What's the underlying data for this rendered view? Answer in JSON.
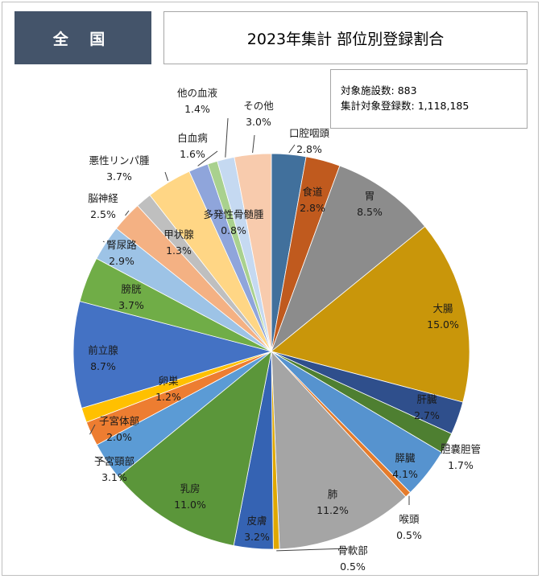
{
  "header": {
    "badge": "全 国",
    "title": "2023年集計 部位別登録割合"
  },
  "info": {
    "facilities_label": "対象施設数:",
    "facilities_value": "883",
    "registrations_label": "集計対象登録数:",
    "registrations_value": "1,118,185"
  },
  "chart_data": {
    "type": "pie",
    "title": "2023年集計 部位別登録割合",
    "slices": [
      {
        "label": "口腔咽頭",
        "value": 2.8,
        "text": "2.8%",
        "color": "#41709c"
      },
      {
        "label": "食道",
        "value": 2.8,
        "text": "2.8%",
        "color": "#c05a1e"
      },
      {
        "label": "胃",
        "value": 8.5,
        "text": "8.5%",
        "color": "#8c8c8c"
      },
      {
        "label": "大腸",
        "value": 15.0,
        "text": "15.0%",
        "color": "#c9960a"
      },
      {
        "label": "肝臓",
        "value": 2.7,
        "text": "2.7%",
        "color": "#2f4f8c"
      },
      {
        "label": "胆嚢胆管",
        "value": 1.7,
        "text": "1.7%",
        "color": "#4e7f31"
      },
      {
        "label": "膵臓",
        "value": 4.1,
        "text": "4.1%",
        "color": "#5693cf"
      },
      {
        "label": "喉頭",
        "value": 0.5,
        "text": "0.5%",
        "color": "#e57c2c"
      },
      {
        "label": "肺",
        "value": 11.2,
        "text": "11.2%",
        "color": "#a5a5a5"
      },
      {
        "label": "骨軟部",
        "value": 0.5,
        "text": "0.5%",
        "color": "#e0a800"
      },
      {
        "label": "皮膚",
        "value": 3.2,
        "text": "3.2%",
        "color": "#3563b3"
      },
      {
        "label": "乳房",
        "value": 11.0,
        "text": "11.0%",
        "color": "#5b963a"
      },
      {
        "label": "子宮頸部",
        "value": 3.1,
        "text": "3.1%",
        "color": "#5b9bd5"
      },
      {
        "label": "子宮体部",
        "value": 2.0,
        "text": "2.0%",
        "color": "#ed7d31"
      },
      {
        "label": "卵巣",
        "value": 1.2,
        "text": "1.2%",
        "color": "#ffc000"
      },
      {
        "label": "前立腺",
        "value": 8.7,
        "text": "8.7%",
        "color": "#4472c4"
      },
      {
        "label": "膀胱",
        "value": 3.7,
        "text": "3.7%",
        "color": "#70ad47"
      },
      {
        "label": "腎尿路",
        "value": 2.9,
        "text": "2.9%",
        "color": "#9dc3e6"
      },
      {
        "label": "脳神経",
        "value": 2.5,
        "text": "2.5%",
        "color": "#f4b183"
      },
      {
        "label": "甲状腺",
        "value": 1.3,
        "text": "1.3%",
        "color": "#bfbfbf"
      },
      {
        "label": "悪性リンパ腫",
        "value": 3.7,
        "text": "3.7%",
        "color": "#ffd685"
      },
      {
        "label": "白血病",
        "value": 1.6,
        "text": "1.6%",
        "color": "#8fa5db"
      },
      {
        "label": "多発性骨髄腫",
        "value": 0.8,
        "text": "0.8%",
        "color": "#a9d18e"
      },
      {
        "label": "他の血液",
        "value": 1.4,
        "text": "1.4%",
        "color": "#c5d9f1"
      },
      {
        "label": "その他",
        "value": 3.0,
        "text": "3.0%",
        "color": "#f8cbad"
      }
    ]
  }
}
